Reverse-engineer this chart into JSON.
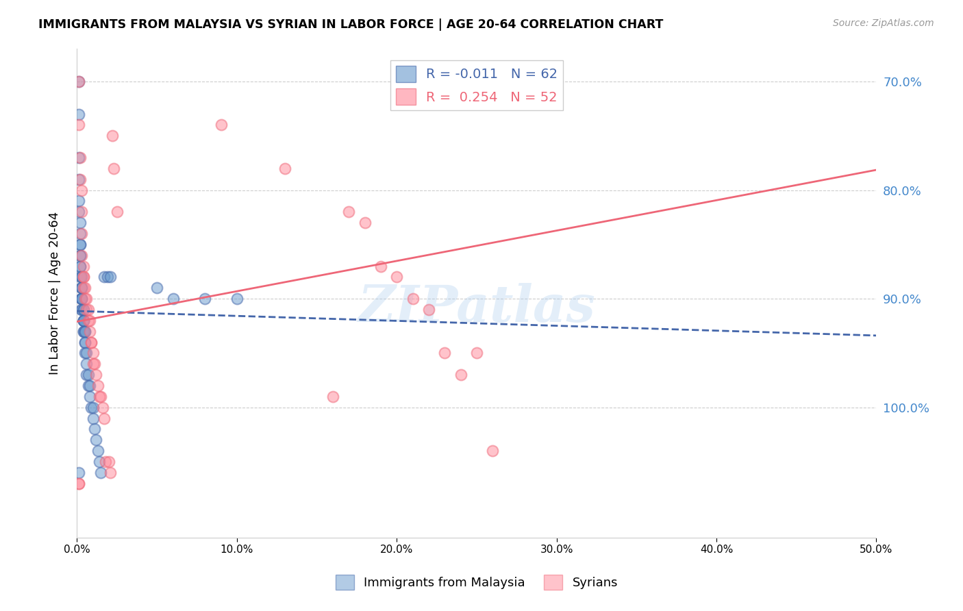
{
  "title": "IMMIGRANTS FROM MALAYSIA VS SYRIAN IN LABOR FORCE | AGE 20-64 CORRELATION CHART",
  "source": "Source: ZipAtlas.com",
  "ylabel": "In Labor Force | Age 20-64",
  "right_y_labels": [
    "100.0%",
    "90.0%",
    "80.0%",
    "70.0%"
  ],
  "watermark": "ZIPatlas",
  "blue_color": "#6699CC",
  "pink_color": "#FF8899",
  "blue_line_color": "#4466AA",
  "pink_line_color": "#EE6677",
  "x_min": 0.0,
  "x_max": 0.5,
  "y_min": 0.58,
  "y_max": 1.03,
  "blue_R": -0.011,
  "blue_N": 62,
  "pink_R": 0.254,
  "pink_N": 52,
  "blue_x": [
    0.001,
    0.001,
    0.001,
    0.001,
    0.001,
    0.001,
    0.002,
    0.002,
    0.002,
    0.002,
    0.002,
    0.002,
    0.002,
    0.002,
    0.002,
    0.003,
    0.003,
    0.003,
    0.003,
    0.003,
    0.003,
    0.003,
    0.003,
    0.003,
    0.003,
    0.003,
    0.004,
    0.004,
    0.004,
    0.004,
    0.004,
    0.004,
    0.004,
    0.004,
    0.005,
    0.005,
    0.005,
    0.005,
    0.005,
    0.006,
    0.006,
    0.006,
    0.007,
    0.007,
    0.008,
    0.008,
    0.009,
    0.01,
    0.01,
    0.011,
    0.012,
    0.013,
    0.014,
    0.015,
    0.017,
    0.019,
    0.021,
    0.05,
    0.06,
    0.08,
    0.1,
    0.001
  ],
  "blue_y": [
    1.0,
    0.97,
    0.93,
    0.91,
    0.89,
    0.88,
    0.87,
    0.86,
    0.85,
    0.85,
    0.84,
    0.84,
    0.83,
    0.83,
    0.82,
    0.82,
    0.82,
    0.81,
    0.81,
    0.81,
    0.8,
    0.8,
    0.8,
    0.8,
    0.79,
    0.79,
    0.79,
    0.79,
    0.78,
    0.78,
    0.78,
    0.78,
    0.77,
    0.77,
    0.77,
    0.77,
    0.76,
    0.76,
    0.75,
    0.75,
    0.74,
    0.73,
    0.73,
    0.72,
    0.72,
    0.71,
    0.7,
    0.7,
    0.69,
    0.68,
    0.67,
    0.66,
    0.65,
    0.64,
    0.82,
    0.82,
    0.82,
    0.81,
    0.8,
    0.8,
    0.8,
    0.64
  ],
  "pink_x": [
    0.001,
    0.001,
    0.002,
    0.002,
    0.003,
    0.003,
    0.003,
    0.003,
    0.004,
    0.004,
    0.004,
    0.004,
    0.005,
    0.005,
    0.006,
    0.006,
    0.007,
    0.007,
    0.008,
    0.008,
    0.009,
    0.009,
    0.01,
    0.01,
    0.011,
    0.012,
    0.013,
    0.014,
    0.015,
    0.016,
    0.017,
    0.018,
    0.02,
    0.021,
    0.022,
    0.023,
    0.025,
    0.09,
    0.13,
    0.16,
    0.17,
    0.18,
    0.19,
    0.2,
    0.21,
    0.22,
    0.23,
    0.24,
    0.25,
    0.26,
    0.001,
    0.001
  ],
  "pink_y": [
    1.0,
    0.96,
    0.93,
    0.91,
    0.9,
    0.88,
    0.86,
    0.84,
    0.83,
    0.82,
    0.82,
    0.81,
    0.81,
    0.8,
    0.8,
    0.79,
    0.79,
    0.78,
    0.78,
    0.77,
    0.76,
    0.76,
    0.75,
    0.74,
    0.74,
    0.73,
    0.72,
    0.71,
    0.71,
    0.7,
    0.69,
    0.65,
    0.65,
    0.64,
    0.95,
    0.92,
    0.88,
    0.96,
    0.92,
    0.71,
    0.88,
    0.87,
    0.83,
    0.82,
    0.8,
    0.79,
    0.75,
    0.73,
    0.75,
    0.66,
    0.63,
    0.63
  ]
}
